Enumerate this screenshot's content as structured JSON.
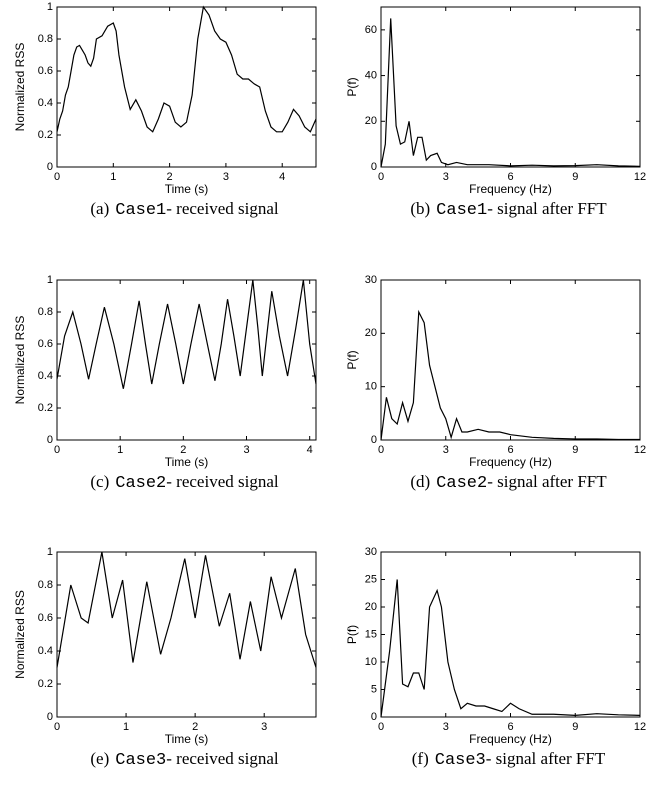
{
  "chart_data": [
    {
      "type": "line",
      "xlabel": "Time (s)",
      "ylabel": "Normalized RSS",
      "caption": {
        "label": "(a)",
        "code": "Case1",
        "text": "- received signal"
      },
      "xlim": [
        0,
        4.6
      ],
      "xticks": [
        0,
        1,
        2,
        3,
        4
      ],
      "ylim": [
        0,
        1
      ],
      "yticks": [
        0,
        0.2,
        0.4,
        0.6,
        0.8,
        1
      ],
      "color": "#000000",
      "x": [
        0,
        0.05,
        0.1,
        0.15,
        0.2,
        0.25,
        0.3,
        0.35,
        0.4,
        0.45,
        0.5,
        0.55,
        0.6,
        0.65,
        0.7,
        0.8,
        0.9,
        1.0,
        1.05,
        1.1,
        1.2,
        1.3,
        1.4,
        1.5,
        1.6,
        1.7,
        1.8,
        1.9,
        2.0,
        2.1,
        2.2,
        2.3,
        2.4,
        2.5,
        2.6,
        2.7,
        2.8,
        2.9,
        3.0,
        3.1,
        3.2,
        3.3,
        3.4,
        3.5,
        3.6,
        3.7,
        3.8,
        3.9,
        4.0,
        4.1,
        4.2,
        4.3,
        4.4,
        4.5,
        4.6
      ],
      "values": [
        0.22,
        0.3,
        0.35,
        0.45,
        0.5,
        0.6,
        0.7,
        0.75,
        0.76,
        0.73,
        0.7,
        0.65,
        0.63,
        0.68,
        0.8,
        0.82,
        0.88,
        0.9,
        0.85,
        0.7,
        0.5,
        0.36,
        0.42,
        0.35,
        0.25,
        0.22,
        0.3,
        0.4,
        0.38,
        0.28,
        0.25,
        0.28,
        0.45,
        0.8,
        1.0,
        0.95,
        0.85,
        0.8,
        0.78,
        0.7,
        0.58,
        0.55,
        0.55,
        0.52,
        0.5,
        0.35,
        0.25,
        0.22,
        0.22,
        0.28,
        0.36,
        0.32,
        0.25,
        0.22,
        0.3
      ]
    },
    {
      "type": "line",
      "xlabel": "Frequency (Hz)",
      "ylabel": "P(f)",
      "caption": {
        "label": "(b)",
        "code": "Case1",
        "text": "- signal after FFT"
      },
      "xlim": [
        0,
        12
      ],
      "xticks": [
        0,
        3,
        6,
        9,
        12
      ],
      "ylim": [
        0,
        70
      ],
      "yticks": [
        0,
        20,
        40,
        60
      ],
      "color": "#000000",
      "x": [
        0,
        0.2,
        0.45,
        0.7,
        0.9,
        1.1,
        1.3,
        1.5,
        1.7,
        1.9,
        2.1,
        2.3,
        2.6,
        2.8,
        3.1,
        3.5,
        4,
        5,
        6,
        7,
        8,
        9,
        10,
        11,
        12
      ],
      "values": [
        0,
        10,
        65,
        18,
        10,
        11,
        20,
        5,
        13,
        13,
        3,
        5,
        6,
        2,
        1,
        2,
        1,
        1,
        0.5,
        0.8,
        0.5,
        0.6,
        1,
        0.5,
        0.3
      ]
    },
    {
      "type": "line",
      "xlabel": "Time (s)",
      "ylabel": "Normalized RSS",
      "caption": {
        "label": "(c)",
        "code": "Case2",
        "text": "- received signal"
      },
      "xlim": [
        0,
        4.1
      ],
      "xticks": [
        0,
        1,
        2,
        3,
        4
      ],
      "ylim": [
        0,
        1
      ],
      "yticks": [
        0,
        0.2,
        0.4,
        0.6,
        0.8,
        1
      ],
      "color": "#000000",
      "x": [
        0,
        0.12,
        0.25,
        0.38,
        0.5,
        0.62,
        0.75,
        0.9,
        1.05,
        1.18,
        1.3,
        1.4,
        1.5,
        1.62,
        1.75,
        1.88,
        2.0,
        2.12,
        2.25,
        2.38,
        2.5,
        2.6,
        2.7,
        2.8,
        2.9,
        3.0,
        3.1,
        3.18,
        3.25,
        3.32,
        3.4,
        3.52,
        3.65,
        3.78,
        3.9,
        4.0,
        4.1
      ],
      "values": [
        0.38,
        0.65,
        0.8,
        0.6,
        0.38,
        0.6,
        0.83,
        0.6,
        0.32,
        0.6,
        0.87,
        0.6,
        0.35,
        0.6,
        0.85,
        0.6,
        0.35,
        0.6,
        0.85,
        0.6,
        0.37,
        0.6,
        0.88,
        0.65,
        0.4,
        0.7,
        1.0,
        0.7,
        0.4,
        0.65,
        0.93,
        0.65,
        0.4,
        0.7,
        1.0,
        0.6,
        0.35
      ]
    },
    {
      "type": "line",
      "xlabel": "Frequency (Hz)",
      "ylabel": "P(f)",
      "caption": {
        "label": "(d)",
        "code": "Case2",
        "text": "- signal after FFT"
      },
      "xlim": [
        0,
        12
      ],
      "xticks": [
        0,
        3,
        6,
        9,
        12
      ],
      "ylim": [
        0,
        30
      ],
      "yticks": [
        0,
        10,
        20,
        30
      ],
      "color": "#000000",
      "x": [
        0,
        0.25,
        0.5,
        0.75,
        1,
        1.25,
        1.5,
        1.75,
        2.0,
        2.25,
        2.5,
        2.75,
        3,
        3.25,
        3.5,
        3.75,
        4,
        4.5,
        5,
        5.5,
        6,
        7,
        8,
        9,
        10,
        11,
        12
      ],
      "values": [
        0,
        8,
        4,
        3,
        7,
        3.5,
        7,
        24,
        22,
        14,
        10,
        6,
        4,
        0.5,
        4,
        1.5,
        1.5,
        2,
        1.5,
        1.5,
        1,
        0.5,
        0.3,
        0.2,
        0.2,
        0.1,
        0.1
      ]
    },
    {
      "type": "line",
      "xlabel": "Time (s)",
      "ylabel": "Normalized RSS",
      "caption": {
        "label": "(e)",
        "code": "Case3",
        "text": "- received signal"
      },
      "xlim": [
        0,
        3.75
      ],
      "xticks": [
        0,
        1,
        2,
        3
      ],
      "ylim": [
        0,
        1
      ],
      "yticks": [
        0,
        0.2,
        0.4,
        0.6,
        0.8,
        1
      ],
      "color": "#000000",
      "x": [
        0,
        0.2,
        0.35,
        0.45,
        0.65,
        0.8,
        0.95,
        1.1,
        1.3,
        1.5,
        1.65,
        1.85,
        2.0,
        2.15,
        2.35,
        2.5,
        2.65,
        2.8,
        2.95,
        3.1,
        3.25,
        3.45,
        3.6,
        3.75
      ],
      "values": [
        0.3,
        0.8,
        0.6,
        0.57,
        1.0,
        0.6,
        0.83,
        0.33,
        0.82,
        0.38,
        0.6,
        0.96,
        0.6,
        0.98,
        0.55,
        0.75,
        0.35,
        0.7,
        0.4,
        0.85,
        0.6,
        0.9,
        0.5,
        0.3
      ]
    },
    {
      "type": "line",
      "xlabel": "Frequency (Hz)",
      "ylabel": "P(f)",
      "caption": {
        "label": "(f)",
        "code": "Case3",
        "text": "- signal after FFT"
      },
      "xlim": [
        0,
        12
      ],
      "xticks": [
        0,
        3,
        6,
        9,
        12
      ],
      "ylim": [
        0,
        30
      ],
      "yticks": [
        0,
        5,
        10,
        15,
        20,
        25,
        30
      ],
      "color": "#000000",
      "x": [
        0,
        0.4,
        0.75,
        1.0,
        1.25,
        1.5,
        1.75,
        2.0,
        2.25,
        2.6,
        2.8,
        3.1,
        3.4,
        3.7,
        4.0,
        4.4,
        4.8,
        5.2,
        5.6,
        6.0,
        6.4,
        7,
        8,
        9,
        10,
        11,
        12
      ],
      "values": [
        0,
        12,
        25,
        6,
        5.5,
        8,
        8,
        5,
        20,
        23,
        20,
        10,
        5,
        1.5,
        2.5,
        2,
        2,
        1.5,
        1,
        2.5,
        1.5,
        0.5,
        0.5,
        0.3,
        0.6,
        0.4,
        0.3
      ]
    }
  ]
}
